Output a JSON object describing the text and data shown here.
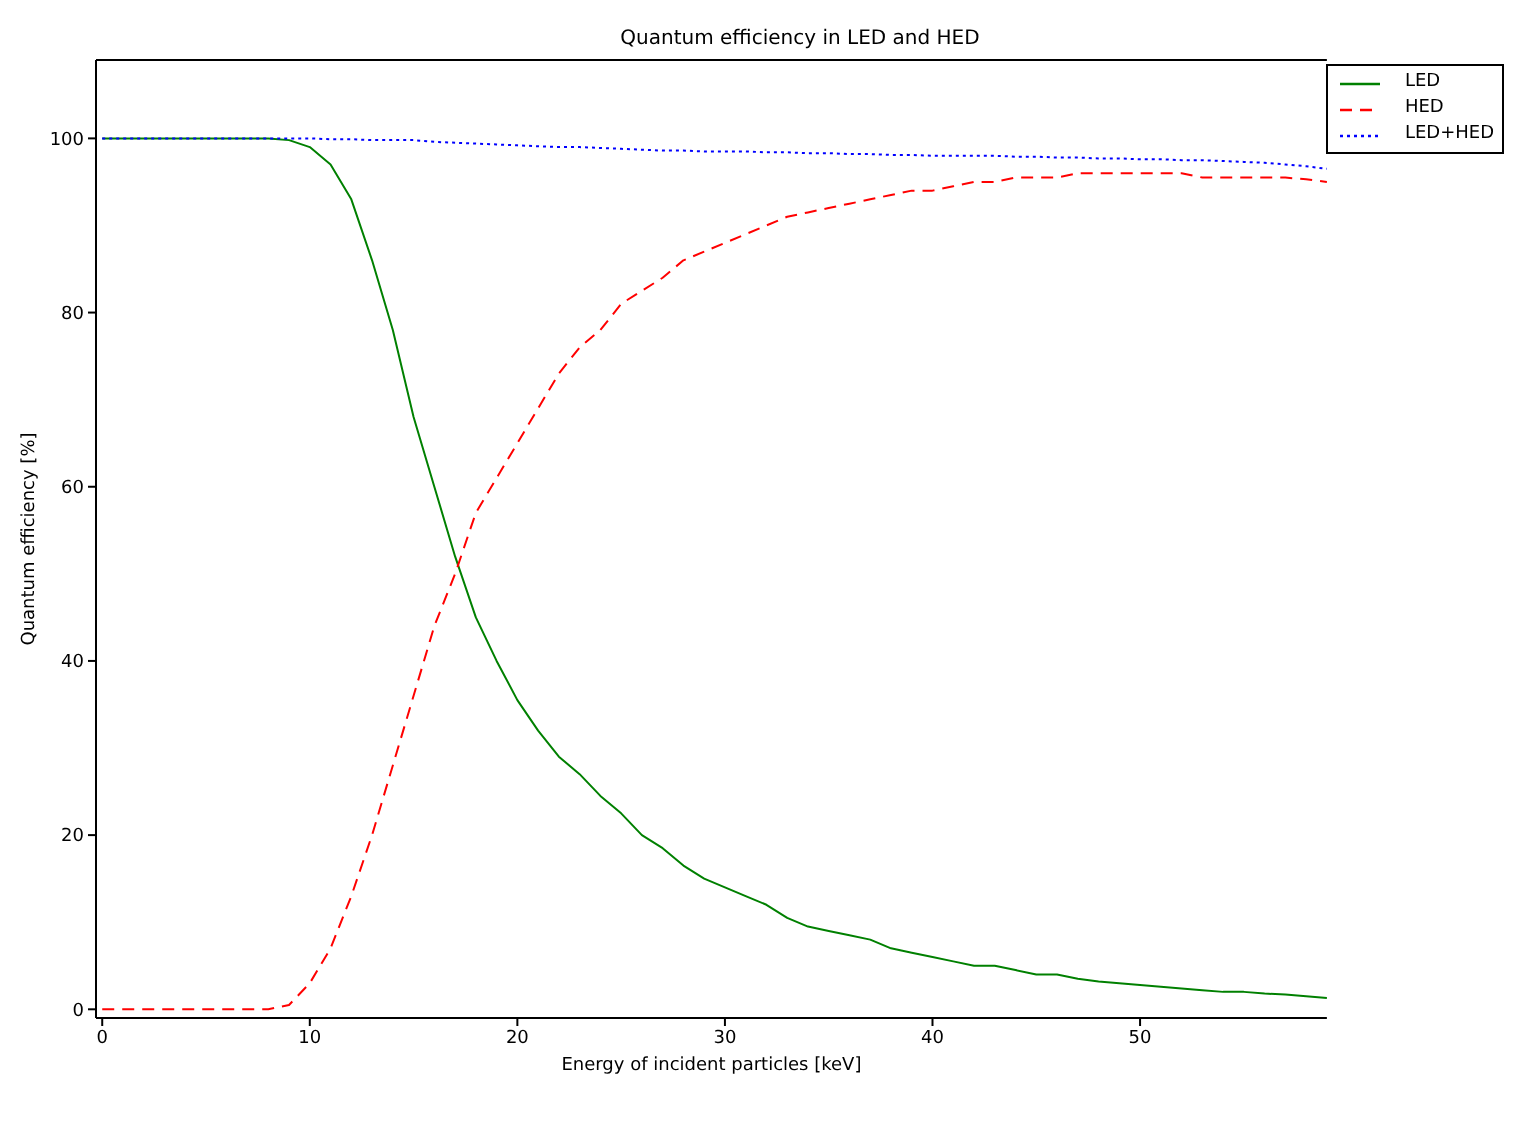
{
  "chart_data": {
    "type": "line",
    "title": "Quantum efficiency in LED and HED",
    "xlabel": "Energy of incident particles [keV]",
    "ylabel": "Quantum efficiency [%]",
    "x": [
      0,
      1,
      2,
      3,
      4,
      5,
      6,
      7,
      8,
      9,
      10,
      11,
      12,
      13,
      14,
      15,
      16,
      17,
      18,
      19,
      20,
      21,
      22,
      23,
      24,
      25,
      26,
      27,
      28,
      29,
      30,
      31,
      32,
      33,
      34,
      35,
      36,
      37,
      38,
      39,
      40,
      41,
      42,
      43,
      44,
      45,
      46,
      47,
      48,
      49,
      50,
      51,
      52,
      53,
      54,
      55,
      56,
      57,
      58,
      59
    ],
    "series": [
      {
        "name": "LED",
        "color": "#008000",
        "line_style": "solid",
        "values": [
          100,
          100,
          100,
          100,
          100,
          100,
          100,
          100,
          100,
          99.8,
          99,
          97,
          93,
          86,
          78,
          68,
          60,
          52,
          45,
          40,
          35.5,
          32,
          29,
          27,
          24.5,
          22.5,
          20,
          18.5,
          16.5,
          15,
          14,
          13,
          12,
          10.5,
          9.5,
          9,
          8.5,
          8,
          7,
          6.5,
          6,
          5.5,
          5,
          5,
          4.5,
          4,
          4,
          3.5,
          3.2,
          3,
          2.8,
          2.6,
          2.4,
          2.2,
          2,
          2,
          1.8,
          1.7,
          1.5,
          1.3
        ]
      },
      {
        "name": "HED",
        "color": "#ff0000",
        "line_style": "dashed",
        "values": [
          0,
          0,
          0,
          0,
          0,
          0,
          0,
          0,
          0,
          0.5,
          3,
          7,
          13,
          20,
          28,
          36,
          44,
          50,
          57,
          61,
          65,
          69,
          73,
          76,
          78,
          81,
          82.5,
          84,
          86,
          87,
          88,
          89,
          90,
          91,
          91.5,
          92,
          92.5,
          93,
          93.5,
          94,
          94,
          94.5,
          95,
          95,
          95.5,
          95.5,
          95.5,
          96,
          96,
          96,
          96,
          96,
          96,
          95.5,
          95.5,
          95.5,
          95.5,
          95.5,
          95.3,
          95
        ]
      },
      {
        "name": "LED+HED",
        "color": "#0000ff",
        "line_style": "dotted",
        "values": [
          100,
          100,
          100,
          100,
          100,
          100,
          100,
          100,
          100,
          100,
          100,
          99.9,
          99.9,
          99.8,
          99.8,
          99.8,
          99.6,
          99.5,
          99.4,
          99.3,
          99.2,
          99.1,
          99,
          99,
          98.9,
          98.8,
          98.7,
          98.6,
          98.6,
          98.5,
          98.5,
          98.5,
          98.4,
          98.4,
          98.3,
          98.3,
          98.2,
          98.2,
          98.1,
          98.1,
          98,
          98,
          98,
          98,
          97.9,
          97.9,
          97.8,
          97.8,
          97.7,
          97.7,
          97.6,
          97.6,
          97.5,
          97.5,
          97.4,
          97.3,
          97.2,
          97,
          96.8,
          96.5
        ]
      }
    ],
    "xlim": [
      -0.3,
      59
    ],
    "xticks": [
      0,
      10,
      20,
      30,
      40,
      50
    ],
    "ylim": [
      -1,
      109
    ],
    "yticks": [
      0,
      20,
      40,
      60,
      80,
      100
    ],
    "legend": "top right",
    "marker": "none"
  }
}
